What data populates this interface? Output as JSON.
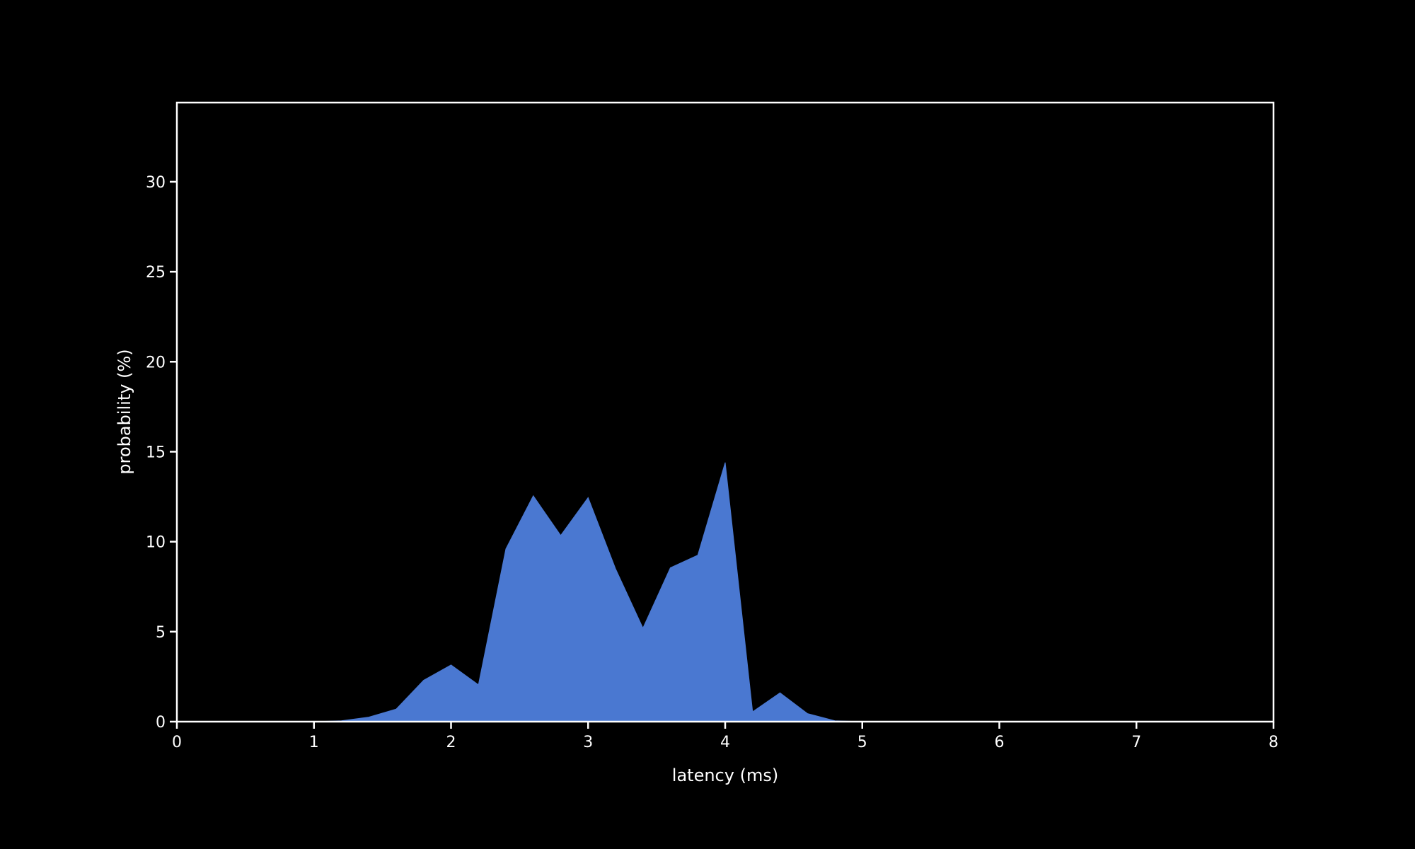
{
  "chart_data": {
    "type": "area",
    "xlabel": "latency (ms)",
    "ylabel": "probability (%)",
    "xlim": [
      0,
      8
    ],
    "ylim": [
      0,
      34.4
    ],
    "xticks": [
      0,
      1,
      2,
      3,
      4,
      5,
      6,
      7,
      8
    ],
    "yticks": [
      0,
      5,
      10,
      15,
      20,
      25,
      30
    ],
    "grid": false,
    "fill_color": "#4a78d1",
    "axis_color": "#ffffff",
    "background": "#000000",
    "series": [
      {
        "x": [
          0,
          0.2,
          0.4,
          0.6,
          0.8,
          1.0,
          1.2,
          1.4,
          1.6,
          1.8,
          2.0,
          2.2,
          2.4,
          2.6,
          2.8,
          3.0,
          3.2,
          3.4,
          3.6,
          3.8,
          4.0,
          4.2,
          4.4,
          4.6,
          4.8,
          5.0,
          5.2,
          5.4,
          5.6,
          5.8,
          6.0,
          6.2,
          6.4,
          6.6,
          6.8,
          7.0,
          7.2,
          7.4,
          7.6,
          7.8,
          8.0
        ],
        "values": [
          0,
          0,
          0,
          0,
          0,
          0,
          0.05,
          0.25,
          0.7,
          2.3,
          3.15,
          2.05,
          9.6,
          12.55,
          10.35,
          12.45,
          8.5,
          5.2,
          8.55,
          9.25,
          14.4,
          0.55,
          1.6,
          0.45,
          0.05,
          0,
          0,
          0,
          0,
          0,
          0,
          0,
          0,
          0,
          0,
          0,
          0,
          0,
          0,
          0,
          0
        ]
      }
    ]
  }
}
